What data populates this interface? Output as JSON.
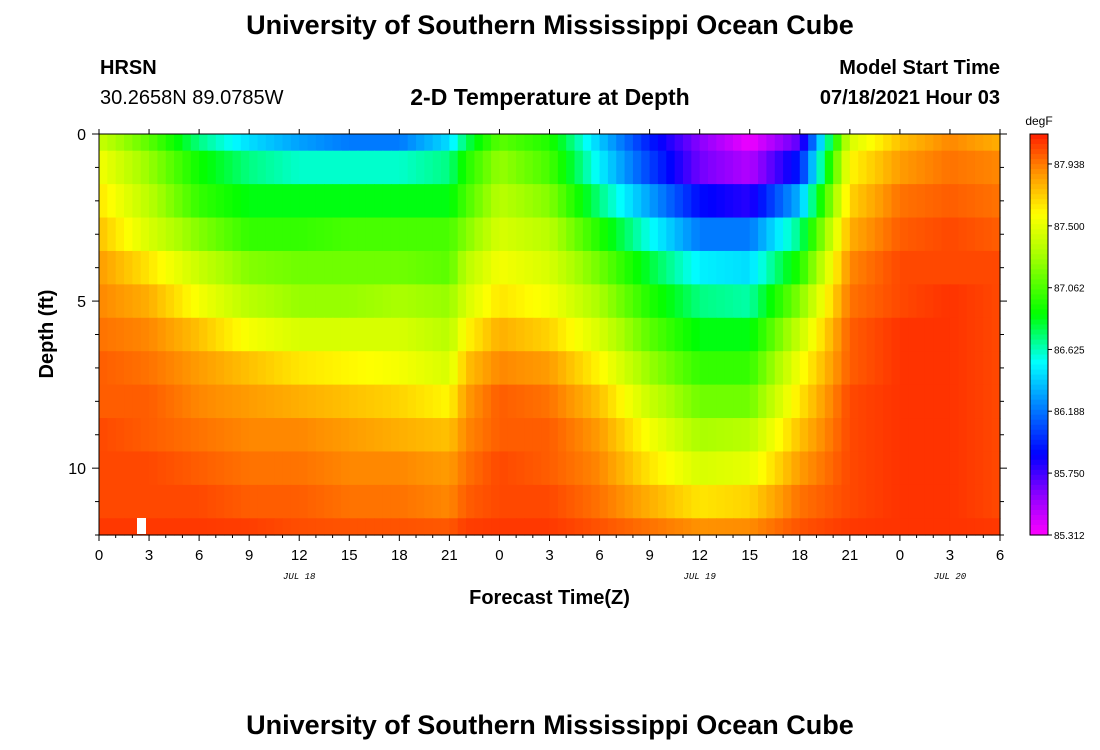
{
  "page": {
    "title_top": "University of Southern Mississippi Ocean Cube",
    "title_bottom": "University of Southern Mississippi Ocean Cube",
    "station": "HRSN",
    "coords": "30.2658N  89.0785W",
    "plot_title": "2-D Temperature at Depth",
    "model_start_label": "Model Start Time",
    "model_start_value": "07/18/2021 Hour 03"
  },
  "chart_data": {
    "type": "heatmap",
    "title": "2-D Temperature at Depth",
    "xlabel": "Forecast Time(Z)",
    "ylabel": "Depth (ft)",
    "x_range_hours": [
      0,
      54
    ],
    "x_tick_labels": [
      "0",
      "3",
      "6",
      "9",
      "12",
      "15",
      "18",
      "21",
      "0",
      "3",
      "6",
      "9",
      "12",
      "15",
      "18",
      "21",
      "0",
      "3",
      "6"
    ],
    "date_labels": [
      {
        "text": "JUL 18",
        "hour": 12
      },
      {
        "text": "JUL 19",
        "hour": 36
      },
      {
        "text": "JUL 20",
        "hour": 51
      }
    ],
    "y_range_ft": [
      0,
      12
    ],
    "y_ticks": [
      0,
      5,
      10
    ],
    "colorbar": {
      "units": "degF",
      "min": 85.312,
      "max": 88.15,
      "tick_values": [
        "87.938",
        "87.500",
        "87.062",
        "86.625",
        "86.188",
        "85.750",
        "85.312"
      ]
    },
    "depths_ft": [
      0,
      1,
      2,
      3,
      4,
      5,
      6,
      7,
      8,
      9,
      10,
      11,
      12
    ],
    "hours": [
      0,
      3,
      6,
      9,
      12,
      15,
      18,
      21,
      22,
      24,
      27,
      30,
      33,
      36,
      39,
      42,
      45,
      48,
      51,
      54
    ],
    "values_degF": [
      [
        87.4,
        87.1,
        86.7,
        86.45,
        86.3,
        86.2,
        86.2,
        86.45,
        86.75,
        87.1,
        86.95,
        86.4,
        85.95,
        85.6,
        85.35,
        85.7,
        87.45,
        87.75,
        87.9,
        87.8
      ],
      [
        87.55,
        87.25,
        86.9,
        86.7,
        86.6,
        86.6,
        86.6,
        86.7,
        86.95,
        87.25,
        87.05,
        86.5,
        86.05,
        85.65,
        85.5,
        85.95,
        87.6,
        87.85,
        87.95,
        87.9
      ],
      [
        87.65,
        87.35,
        87.0,
        86.85,
        86.85,
        86.85,
        86.85,
        86.85,
        87.05,
        87.35,
        87.2,
        86.7,
        86.3,
        85.9,
        85.8,
        86.35,
        87.7,
        87.95,
        88.0,
        87.95
      ],
      [
        87.75,
        87.45,
        87.2,
        87.0,
        87.0,
        87.05,
        87.05,
        87.05,
        87.2,
        87.45,
        87.35,
        86.95,
        86.55,
        86.2,
        86.2,
        86.7,
        87.8,
        88.0,
        88.05,
        88.0
      ],
      [
        87.85,
        87.65,
        87.4,
        87.2,
        87.15,
        87.15,
        87.15,
        87.1,
        87.35,
        87.55,
        87.45,
        87.15,
        86.8,
        86.5,
        86.45,
        86.95,
        87.9,
        88.05,
        88.05,
        88.05
      ],
      [
        87.9,
        87.8,
        87.55,
        87.35,
        87.25,
        87.25,
        87.3,
        87.25,
        87.45,
        87.65,
        87.55,
        87.3,
        86.95,
        86.7,
        86.65,
        87.2,
        87.95,
        88.05,
        88.1,
        88.05
      ],
      [
        87.95,
        87.9,
        87.75,
        87.55,
        87.45,
        87.45,
        87.45,
        87.35,
        87.6,
        87.8,
        87.7,
        87.45,
        87.1,
        86.85,
        86.85,
        87.4,
        88.0,
        88.1,
        88.1,
        88.05
      ],
      [
        88.0,
        87.95,
        87.85,
        87.75,
        87.65,
        87.6,
        87.55,
        87.45,
        87.75,
        87.9,
        87.85,
        87.6,
        87.25,
        87.0,
        87.0,
        87.55,
        88.0,
        88.1,
        88.1,
        88.05
      ],
      [
        88.0,
        88.0,
        87.9,
        87.85,
        87.8,
        87.75,
        87.7,
        87.6,
        87.85,
        88.0,
        87.95,
        87.75,
        87.4,
        87.15,
        87.15,
        87.65,
        88.05,
        88.1,
        88.1,
        88.05
      ],
      [
        88.05,
        88.0,
        87.95,
        87.9,
        87.9,
        87.85,
        87.8,
        87.75,
        87.9,
        88.0,
        88.0,
        87.85,
        87.55,
        87.3,
        87.35,
        87.75,
        88.05,
        88.1,
        88.1,
        88.05
      ],
      [
        88.05,
        88.05,
        88.0,
        87.95,
        87.95,
        87.9,
        87.9,
        87.85,
        87.95,
        88.05,
        88.0,
        87.9,
        87.65,
        87.45,
        87.5,
        87.85,
        88.05,
        88.1,
        88.1,
        88.05
      ],
      [
        88.05,
        88.05,
        88.05,
        88.0,
        88.0,
        87.95,
        87.95,
        87.9,
        88.0,
        88.05,
        88.05,
        87.95,
        87.8,
        87.65,
        87.7,
        87.95,
        88.05,
        88.1,
        88.1,
        88.05
      ],
      [
        88.1,
        88.1,
        88.1,
        88.1,
        88.05,
        88.05,
        88.05,
        88.05,
        88.1,
        88.1,
        88.1,
        88.05,
        88.0,
        87.95,
        87.95,
        88.05,
        88.1,
        88.1,
        88.1,
        88.1
      ]
    ]
  }
}
